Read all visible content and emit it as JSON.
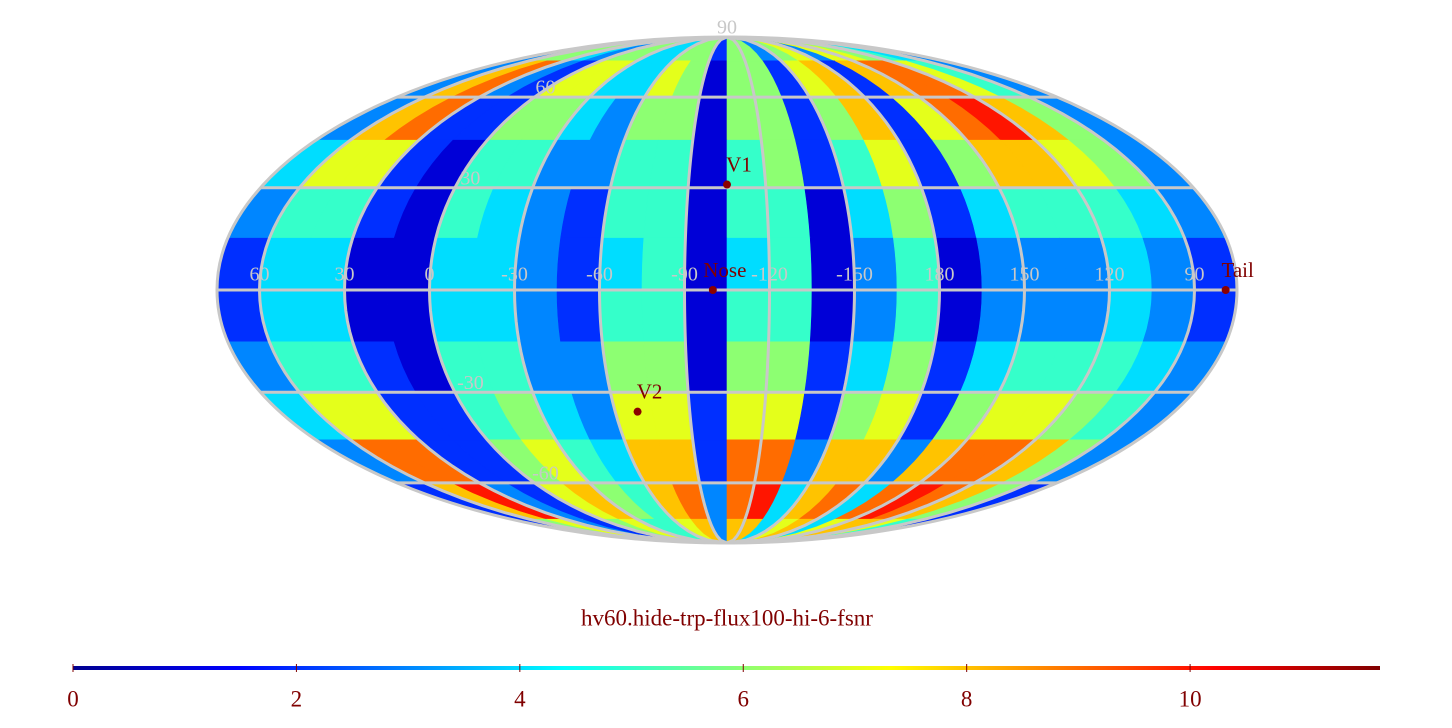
{
  "chart_data": {
    "type": "heatmap",
    "title": "hv60.hide-trp-flux100-hi-6-fsnr",
    "values": [
      [
        3,
        6,
        6,
        4,
        3,
        6,
        6,
        4,
        4,
        6,
        6,
        2,
        6,
        6,
        3,
        6,
        7,
        3,
        7,
        7,
        6,
        5,
        4,
        3
      ],
      [
        3,
        8,
        9,
        3,
        2,
        7,
        7,
        4,
        4,
        7,
        6,
        1,
        6,
        6,
        2,
        7,
        8,
        2,
        8,
        9,
        9,
        7,
        5,
        3
      ],
      [
        3,
        8,
        9,
        2,
        2,
        6,
        6,
        4,
        3,
        6,
        6,
        1,
        6,
        6,
        2,
        6,
        8,
        2,
        7,
        9,
        10,
        8,
        6,
        3
      ],
      [
        4,
        7,
        7,
        2,
        1,
        5,
        5,
        3,
        3,
        5,
        5,
        1,
        5,
        6,
        2,
        5,
        7,
        2,
        6,
        8,
        8,
        7,
        6,
        3
      ],
      [
        3,
        5,
        5,
        2,
        1,
        5,
        4,
        3,
        2,
        5,
        5,
        1,
        5,
        5,
        1,
        4,
        6,
        2,
        4,
        5,
        5,
        5,
        4,
        3
      ],
      [
        2,
        4,
        4,
        1,
        1,
        4,
        4,
        3,
        2,
        4,
        5,
        1,
        4,
        5,
        1,
        3,
        5,
        1,
        3,
        3,
        3,
        4,
        3,
        2
      ],
      [
        2,
        4,
        4,
        1,
        1,
        4,
        4,
        3,
        2,
        5,
        5,
        1,
        5,
        5,
        1,
        3,
        5,
        1,
        3,
        3,
        3,
        4,
        3,
        2
      ],
      [
        3,
        5,
        5,
        2,
        1,
        5,
        5,
        3,
        3,
        6,
        6,
        1,
        6,
        6,
        2,
        4,
        6,
        2,
        4,
        5,
        5,
        5,
        4,
        3
      ],
      [
        4,
        7,
        7,
        2,
        2,
        5,
        6,
        4,
        3,
        7,
        7,
        2,
        7,
        7,
        2,
        6,
        7,
        2,
        6,
        7,
        7,
        6,
        5,
        3
      ],
      [
        3,
        9,
        9,
        2,
        2,
        6,
        7,
        5,
        4,
        8,
        8,
        2,
        9,
        9,
        3,
        8,
        8,
        3,
        8,
        9,
        9,
        8,
        6,
        3
      ],
      [
        2,
        8,
        10,
        3,
        2,
        7,
        8,
        6,
        5,
        8,
        9,
        3,
        9,
        10,
        4,
        8,
        9,
        4,
        9,
        10,
        9,
        8,
        6,
        2
      ],
      [
        2,
        6,
        7,
        3,
        2,
        6,
        7,
        5,
        5,
        7,
        8,
        3,
        8,
        8,
        4,
        7,
        8,
        4,
        7,
        8,
        8,
        7,
        5,
        2
      ]
    ],
    "clim": [
      0,
      11.7
    ],
    "cticks": [
      0,
      2,
      4,
      6,
      8,
      10
    ],
    "lat_ticks": [
      90,
      60,
      30,
      -30,
      -60
    ],
    "lon_ticks": [
      60,
      30,
      0,
      -30,
      -60,
      -90,
      -120,
      -150,
      180,
      150,
      120,
      90
    ],
    "points": [
      {
        "label": "V1",
        "lon": -105,
        "lat": 31
      },
      {
        "label": "Nose",
        "lon": -100,
        "lat": 0
      },
      {
        "label": "V2",
        "lon": -69,
        "lat": -36
      },
      {
        "label": "Tail",
        "lon": 79,
        "lat": 0
      }
    ],
    "grid": true
  }
}
